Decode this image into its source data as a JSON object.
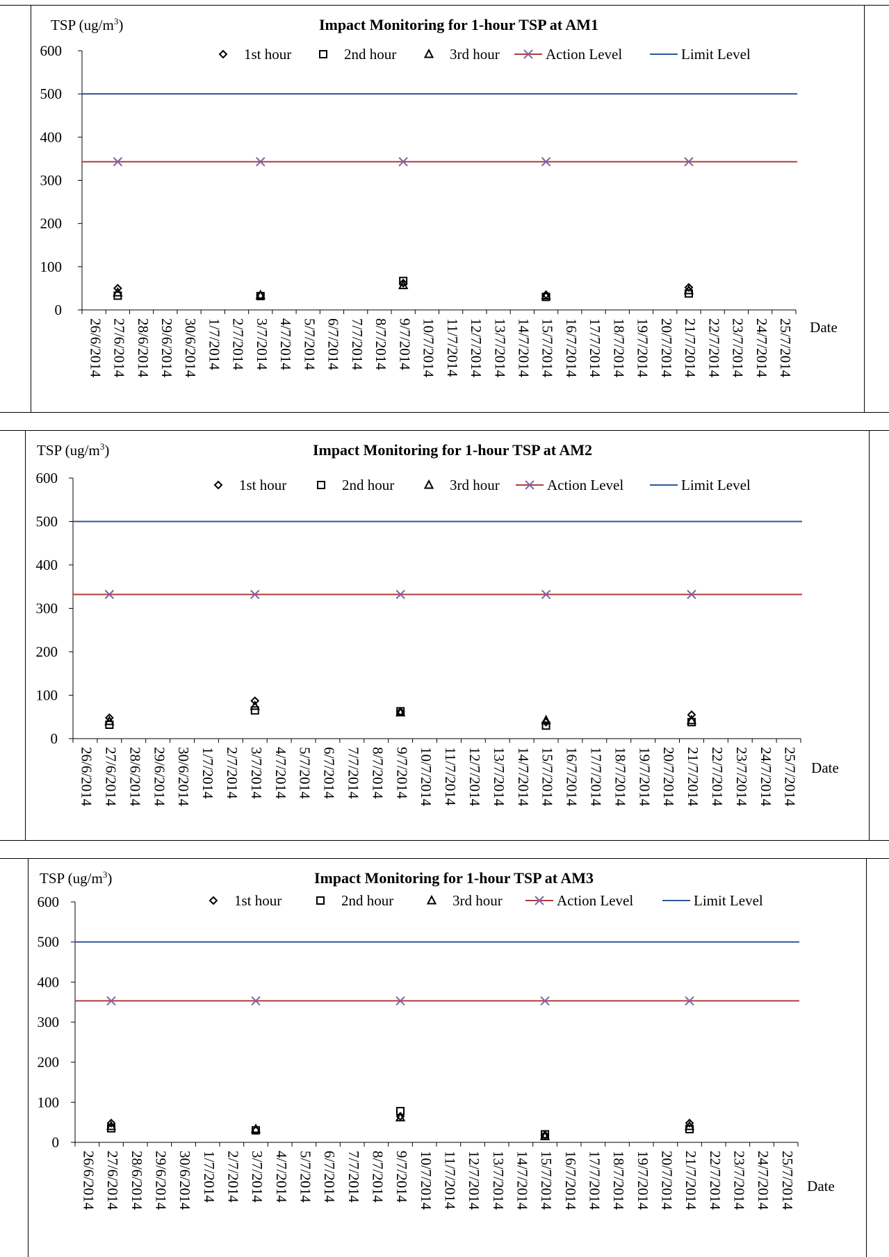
{
  "chart_data": [
    {
      "type": "scatter",
      "title": "Impact Monitoring  for  1-hour TSP at AM1",
      "ylabel_main": "TSP (ug/m",
      "ylabel_sup": "3",
      "ylabel_close": ")",
      "xlabel": "Date",
      "ylim": [
        0,
        600
      ],
      "yticks": [
        0,
        100,
        200,
        300,
        400,
        500,
        600
      ],
      "categories": [
        "26/6/2014",
        "27/6/2014",
        "28/6/2014",
        "29/6/2014",
        "30/6/2014",
        "1/7/2014",
        "2/7/2014",
        "3/7/2014",
        "4/7/2014",
        "5/7/2014",
        "6/7/2014",
        "7/7/2014",
        "8/7/2014",
        "9/7/2014",
        "10/7/2014",
        "11/7/2014",
        "12/7/2014",
        "13/7/2014",
        "14/7/2014",
        "15/7/2014",
        "16/7/2014",
        "17/7/2014",
        "18/7/2014",
        "19/7/2014",
        "20/7/2014",
        "21/7/2014",
        "22/7/2014",
        "23/7/2014",
        "24/7/2014",
        "25/7/2014"
      ],
      "grid": false,
      "legend_position": "top",
      "series": [
        {
          "name": "1st hour",
          "marker": "diamond",
          "x": [
            "27/6/2014",
            "3/7/2014",
            "9/7/2014",
            "15/7/2014",
            "21/7/2014"
          ],
          "values": [
            50,
            33,
            62,
            35,
            52
          ]
        },
        {
          "name": "2nd hour",
          "marker": "square",
          "x": [
            "27/6/2014",
            "3/7/2014",
            "9/7/2014",
            "15/7/2014",
            "21/7/2014"
          ],
          "values": [
            33,
            32,
            67,
            30,
            38
          ]
        },
        {
          "name": "3rd hour",
          "marker": "triangle",
          "x": [
            "27/6/2014",
            "3/7/2014",
            "9/7/2014",
            "15/7/2014",
            "21/7/2014"
          ],
          "values": [
            40,
            34,
            57,
            33,
            45
          ]
        },
        {
          "name": "Action Level",
          "marker": "x-line",
          "color": "#b03a3a",
          "marker_color": "#8064a2",
          "x": [
            "27/6/2014",
            "3/7/2014",
            "9/7/2014",
            "15/7/2014",
            "21/7/2014"
          ],
          "values": [
            343,
            343,
            343,
            343,
            343
          ]
        },
        {
          "name": "Limit Level",
          "marker": "line",
          "color": "#2e5597",
          "values": [
            500
          ]
        }
      ]
    },
    {
      "type": "scatter",
      "title": "Impact Monitoring  for  1-hour TSP at AM2",
      "ylabel_main": "TSP (ug/m",
      "ylabel_sup": "3",
      "ylabel_close": ")",
      "xlabel": "Date",
      "ylim": [
        0,
        600
      ],
      "yticks": [
        0,
        100,
        200,
        300,
        400,
        500,
        600
      ],
      "categories": [
        "26/6/2014",
        "27/6/2014",
        "28/6/2014",
        "29/6/2014",
        "30/6/2014",
        "1/7/2014",
        "2/7/2014",
        "3/7/2014",
        "4/7/2014",
        "5/7/2014",
        "6/7/2014",
        "7/7/2014",
        "8/7/2014",
        "9/7/2014",
        "10/7/2014",
        "11/7/2014",
        "12/7/2014",
        "13/7/2014",
        "14/7/2014",
        "15/7/2014",
        "16/7/2014",
        "17/7/2014",
        "18/7/2014",
        "19/7/2014",
        "20/7/2014",
        "21/7/2014",
        "22/7/2014",
        "23/7/2014",
        "24/7/2014",
        "25/7/2014"
      ],
      "grid": false,
      "legend_position": "top",
      "series": [
        {
          "name": "1st hour",
          "marker": "diamond",
          "x": [
            "27/6/2014",
            "3/7/2014",
            "9/7/2014",
            "15/7/2014",
            "21/7/2014"
          ],
          "values": [
            48,
            87,
            62,
            38,
            55
          ]
        },
        {
          "name": "2nd hour",
          "marker": "square",
          "x": [
            "27/6/2014",
            "3/7/2014",
            "9/7/2014",
            "15/7/2014",
            "21/7/2014"
          ],
          "values": [
            32,
            65,
            63,
            30,
            38
          ]
        },
        {
          "name": "3rd hour",
          "marker": "triangle",
          "x": [
            "27/6/2014",
            "3/7/2014",
            "9/7/2014",
            "15/7/2014",
            "21/7/2014"
          ],
          "values": [
            40,
            75,
            60,
            42,
            42
          ]
        },
        {
          "name": "Action Level",
          "marker": "x-line",
          "color": "#b03a3a",
          "marker_color": "#8064a2",
          "x": [
            "27/6/2014",
            "3/7/2014",
            "9/7/2014",
            "15/7/2014",
            "21/7/2014"
          ],
          "values": [
            332,
            332,
            332,
            332,
            332
          ]
        },
        {
          "name": "Limit Level",
          "marker": "line",
          "color": "#2e5597",
          "values": [
            500
          ]
        }
      ]
    },
    {
      "type": "scatter",
      "title": "Impact Monitoring  for  1-hour TSP at AM3",
      "ylabel_main": "TSP (ug/m",
      "ylabel_sup": "3",
      "ylabel_close": ")",
      "xlabel": "Date",
      "ylim": [
        0,
        600
      ],
      "yticks": [
        0,
        100,
        200,
        300,
        400,
        500,
        600
      ],
      "categories": [
        "26/6/2014",
        "27/6/2014",
        "28/6/2014",
        "29/6/2014",
        "30/6/2014",
        "1/7/2014",
        "2/7/2014",
        "3/7/2014",
        "4/7/2014",
        "5/7/2014",
        "6/7/2014",
        "7/7/2014",
        "8/7/2014",
        "9/7/2014",
        "10/7/2014",
        "11/7/2014",
        "12/7/2014",
        "13/7/2014",
        "14/7/2014",
        "15/7/2014",
        "16/7/2014",
        "17/7/2014",
        "18/7/2014",
        "19/7/2014",
        "20/7/2014",
        "21/7/2014",
        "22/7/2014",
        "23/7/2014",
        "24/7/2014",
        "25/7/2014"
      ],
      "grid": false,
      "legend_position": "top",
      "series": [
        {
          "name": "1st hour",
          "marker": "diamond",
          "x": [
            "27/6/2014",
            "3/7/2014",
            "9/7/2014",
            "15/7/2014",
            "21/7/2014"
          ],
          "values": [
            48,
            30,
            65,
            18,
            48
          ]
        },
        {
          "name": "2nd hour",
          "marker": "square",
          "x": [
            "27/6/2014",
            "3/7/2014",
            "9/7/2014",
            "15/7/2014",
            "21/7/2014"
          ],
          "values": [
            35,
            30,
            78,
            20,
            33
          ]
        },
        {
          "name": "3rd hour",
          "marker": "triangle",
          "x": [
            "27/6/2014",
            "3/7/2014",
            "9/7/2014",
            "15/7/2014",
            "21/7/2014"
          ],
          "values": [
            40,
            33,
            62,
            15,
            40
          ]
        },
        {
          "name": "Action Level",
          "marker": "x-line",
          "color": "#b03a3a",
          "marker_color": "#8064a2",
          "x": [
            "27/6/2014",
            "3/7/2014",
            "9/7/2014",
            "15/7/2014",
            "21/7/2014"
          ],
          "values": [
            353,
            353,
            353,
            353,
            353
          ]
        },
        {
          "name": "Limit Level",
          "marker": "line",
          "color": "#2e5597",
          "values": [
            500
          ]
        }
      ]
    }
  ]
}
